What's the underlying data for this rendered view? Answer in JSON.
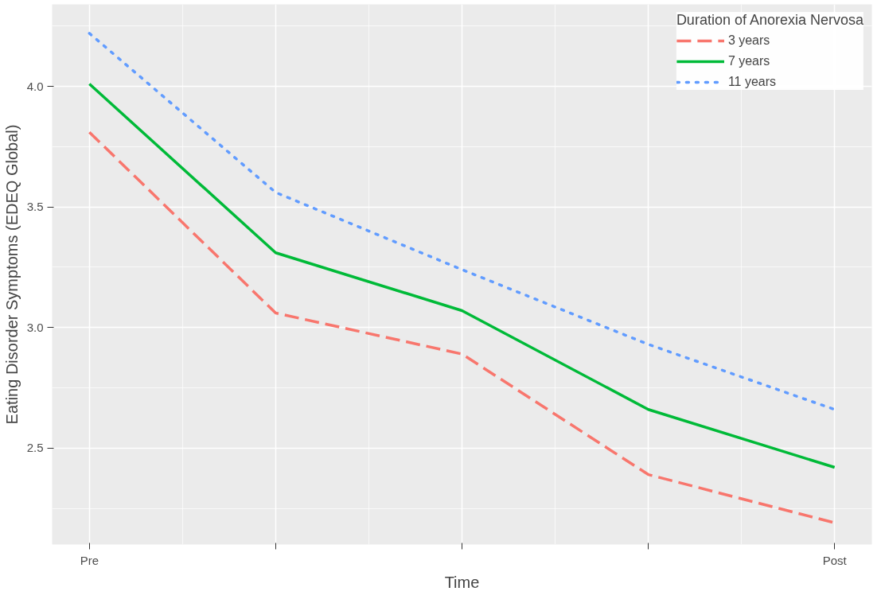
{
  "chart_data": {
    "type": "line",
    "xlabel": "Time",
    "ylabel": "Eating Disorder Symptoms (EDEQ Global)",
    "legend_title": "Duration of Anorexia Nervosa",
    "categories": [
      "Pre",
      null,
      null,
      null,
      "Post"
    ],
    "series": [
      {
        "name": "3 years",
        "color": "#f8766d",
        "line_style": "dashed",
        "values": [
          3.81,
          3.06,
          2.89,
          2.39,
          2.19
        ]
      },
      {
        "name": "7 years",
        "color": "#00ba38",
        "line_style": "solid",
        "values": [
          4.01,
          3.31,
          3.07,
          2.66,
          2.42
        ]
      },
      {
        "name": "11 years",
        "color": "#619cff",
        "line_style": "dotted",
        "values": [
          4.22,
          3.56,
          3.24,
          2.93,
          2.66
        ]
      }
    ],
    "ylim": [
      2.1,
      4.34
    ],
    "yticks": [
      2.5,
      {
        "value": 3,
        "label": "3.0"
      },
      3.5,
      {
        "value": 4,
        "label": "4.0"
      }
    ],
    "grid": true,
    "legend": "top right",
    "marker": "none"
  }
}
